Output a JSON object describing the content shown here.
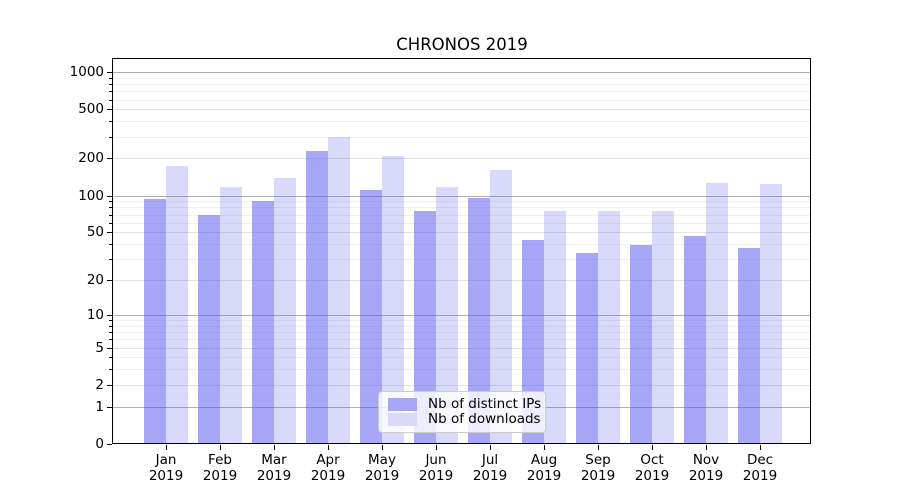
{
  "title": "CHRONOS 2019",
  "legend": {
    "position": "lower center",
    "items": [
      {
        "label": "Nb of distinct IPs",
        "color": "#a7a7f7"
      },
      {
        "label": "Nb of downloads",
        "color": "#d9d9fa"
      }
    ]
  },
  "axes": {
    "y_tick_labels": [
      "0",
      "1",
      "2",
      "5",
      "10",
      "20",
      "50",
      "100",
      "200",
      "500",
      "1000"
    ],
    "x_months": [
      "Jan",
      "Feb",
      "Mar",
      "Apr",
      "May",
      "Jun",
      "Jul",
      "Aug",
      "Sep",
      "Oct",
      "Nov",
      "Dec"
    ],
    "x_year": "2019"
  },
  "chart_data": {
    "type": "bar",
    "title": "CHRONOS 2019",
    "categories": [
      "Jan 2019",
      "Feb 2019",
      "Mar 2019",
      "Apr 2019",
      "May 2019",
      "Jun 2019",
      "Jul 2019",
      "Aug 2019",
      "Sep 2019",
      "Oct 2019",
      "Nov 2019",
      "Dec 2019"
    ],
    "series": [
      {
        "name": "Nb of distinct IPs",
        "color": "#a7a7f7",
        "fill": "rgba(80,80,240,0.5)",
        "values": [
          93,
          69,
          90,
          230,
          112,
          75,
          96,
          43,
          34,
          39,
          47,
          37
        ]
      },
      {
        "name": "Nb of downloads",
        "color": "#d9d9fa",
        "fill": "rgba(80,80,240,0.22)",
        "values": [
          174,
          118,
          138,
          300,
          208,
          118,
          160,
          75,
          75,
          75,
          127,
          124
        ]
      }
    ],
    "xlabel": "",
    "ylabel": "",
    "yscale": "log10(value+1)",
    "yticks": [
      0,
      1,
      2,
      5,
      10,
      20,
      50,
      100,
      200,
      500,
      1000
    ],
    "ylim": [
      0,
      1300
    ],
    "grid": true,
    "legend_position": "lower center"
  }
}
